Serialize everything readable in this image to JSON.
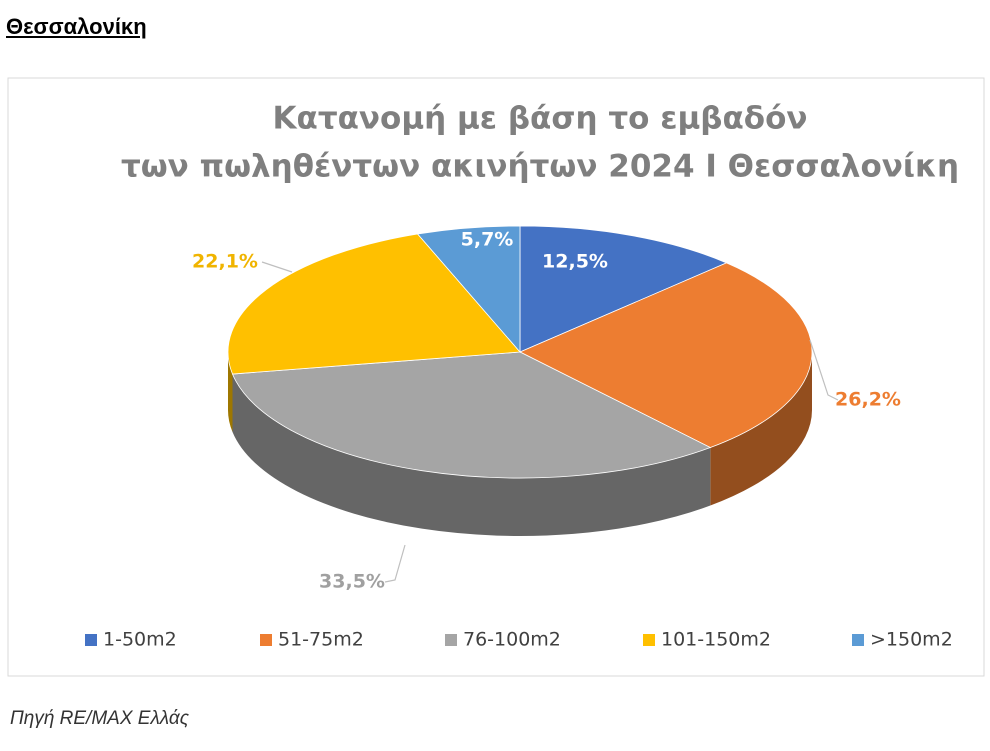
{
  "header": {
    "title": "Θεσσαλονίκη"
  },
  "chart_data": {
    "type": "pie",
    "title": "Κατανομή με βάση το εμβαδόν των πωληθέντων ακινήτων 2024 Ι Θεσσαλονίκη",
    "categories": [
      "1-50m2",
      "51-75m2",
      "76-100m2",
      "101-150m2",
      ">150m2"
    ],
    "values": [
      12.5,
      26.2,
      33.5,
      22.1,
      5.7
    ],
    "value_labels": [
      "12,5%",
      "26,2%",
      "33,5%",
      "22,1%",
      "5,7%"
    ],
    "colors": [
      "#4472c4",
      "#ed7d31",
      "#a5a5a5",
      "#ffc000",
      "#5b9bd5"
    ],
    "legend": "bottom"
  },
  "footer": {
    "source": "Πηγή RE/MAX Ελλάς"
  }
}
